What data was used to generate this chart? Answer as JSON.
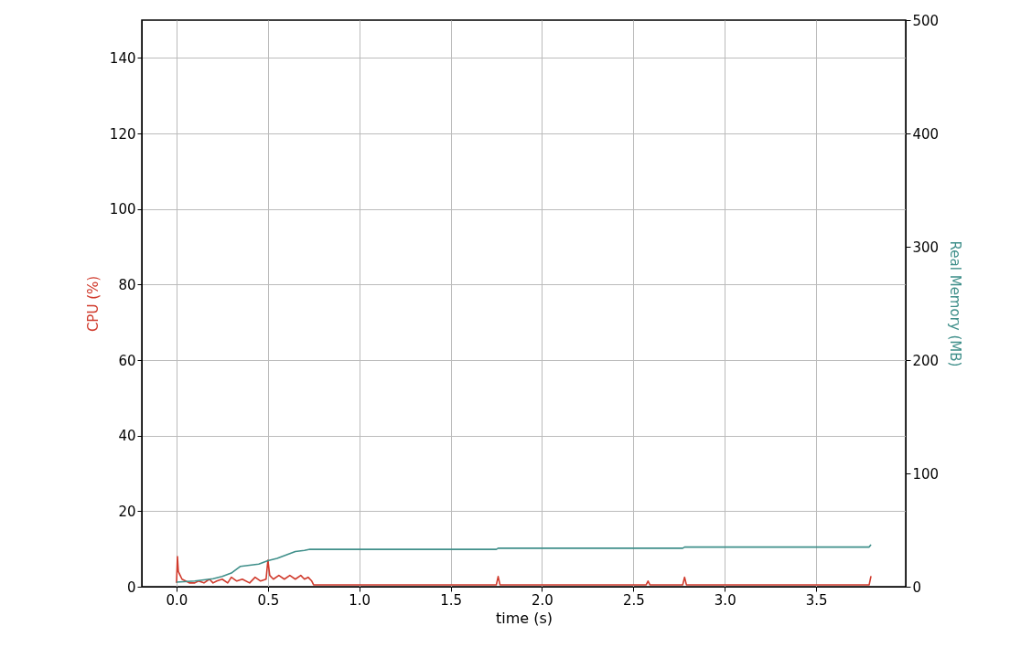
{
  "chart_data": {
    "type": "line",
    "xlabel": "time (s)",
    "ylabel": "CPU (%)",
    "y2label": "Real Memory (MB)",
    "xlim": [
      -0.19,
      3.99
    ],
    "xticks": [
      {
        "value": 0,
        "label": "0.0"
      },
      {
        "value": 0.5,
        "label": "0.5"
      },
      {
        "value": 1,
        "label": "1.0"
      },
      {
        "value": 1.5,
        "label": "1.5"
      },
      {
        "value": 2,
        "label": "2.0"
      },
      {
        "value": 2.5,
        "label": "2.5"
      },
      {
        "value": 3,
        "label": "3.0"
      },
      {
        "value": 3.5,
        "label": "3.5"
      }
    ],
    "ylim": [
      0,
      150
    ],
    "yticks": [
      0,
      20,
      40,
      60,
      80,
      100,
      120,
      140
    ],
    "y2lim": [
      0,
      500
    ],
    "y2ticks": [
      0,
      100,
      200,
      300,
      400,
      500
    ],
    "grid": true,
    "line_style": "solid",
    "marker": "none",
    "series": [
      {
        "color": "#d03a2c",
        "x": [
          0,
          0.005,
          0.01,
          0.02,
          0.03,
          0.05,
          0.07,
          0.1,
          0.12,
          0.15,
          0.18,
          0.2,
          0.22,
          0.25,
          0.28,
          0.3,
          0.33,
          0.36,
          0.4,
          0.43,
          0.46,
          0.49,
          0.5,
          0.51,
          0.53,
          0.56,
          0.59,
          0.62,
          0.65,
          0.68,
          0.7,
          0.72,
          0.74,
          0.75,
          1.0,
          1.5,
          1.75,
          1.76,
          1.77,
          2.0,
          2.5,
          2.57,
          2.58,
          2.59,
          2.77,
          2.78,
          2.79,
          3.0,
          3.5,
          3.79,
          3.8
        ],
        "values": [
          1,
          8,
          4,
          3,
          2,
          1.5,
          1,
          1,
          1.5,
          1,
          2,
          1,
          1.5,
          2,
          1,
          2.5,
          1.5,
          2,
          1,
          2.5,
          1.5,
          2,
          7,
          3,
          2,
          3,
          2,
          3,
          2,
          3,
          2,
          2.5,
          1.5,
          0.5,
          0.5,
          0.5,
          0.5,
          2.7,
          0.5,
          0.5,
          0.5,
          0.5,
          1.5,
          0.5,
          0.5,
          2.5,
          0.5,
          0.5,
          0.5,
          0.5,
          2.8
        ]
      },
      {
        "color": "#3f8f8a",
        "axis": "y2",
        "x": [
          0,
          0.1,
          0.2,
          0.25,
          0.3,
          0.35,
          0.4,
          0.45,
          0.5,
          0.55,
          0.6,
          0.65,
          0.7,
          0.73,
          1.0,
          1.5,
          1.75,
          1.76,
          2.0,
          2.5,
          2.77,
          2.78,
          3.0,
          3.5,
          3.79,
          3.8
        ],
        "values": [
          4,
          5,
          7,
          9,
          12,
          18,
          19,
          20,
          23,
          25,
          28,
          31,
          32,
          33,
          33,
          33,
          33,
          34,
          34,
          34,
          34,
          35,
          35,
          35,
          35,
          37
        ]
      }
    ]
  }
}
